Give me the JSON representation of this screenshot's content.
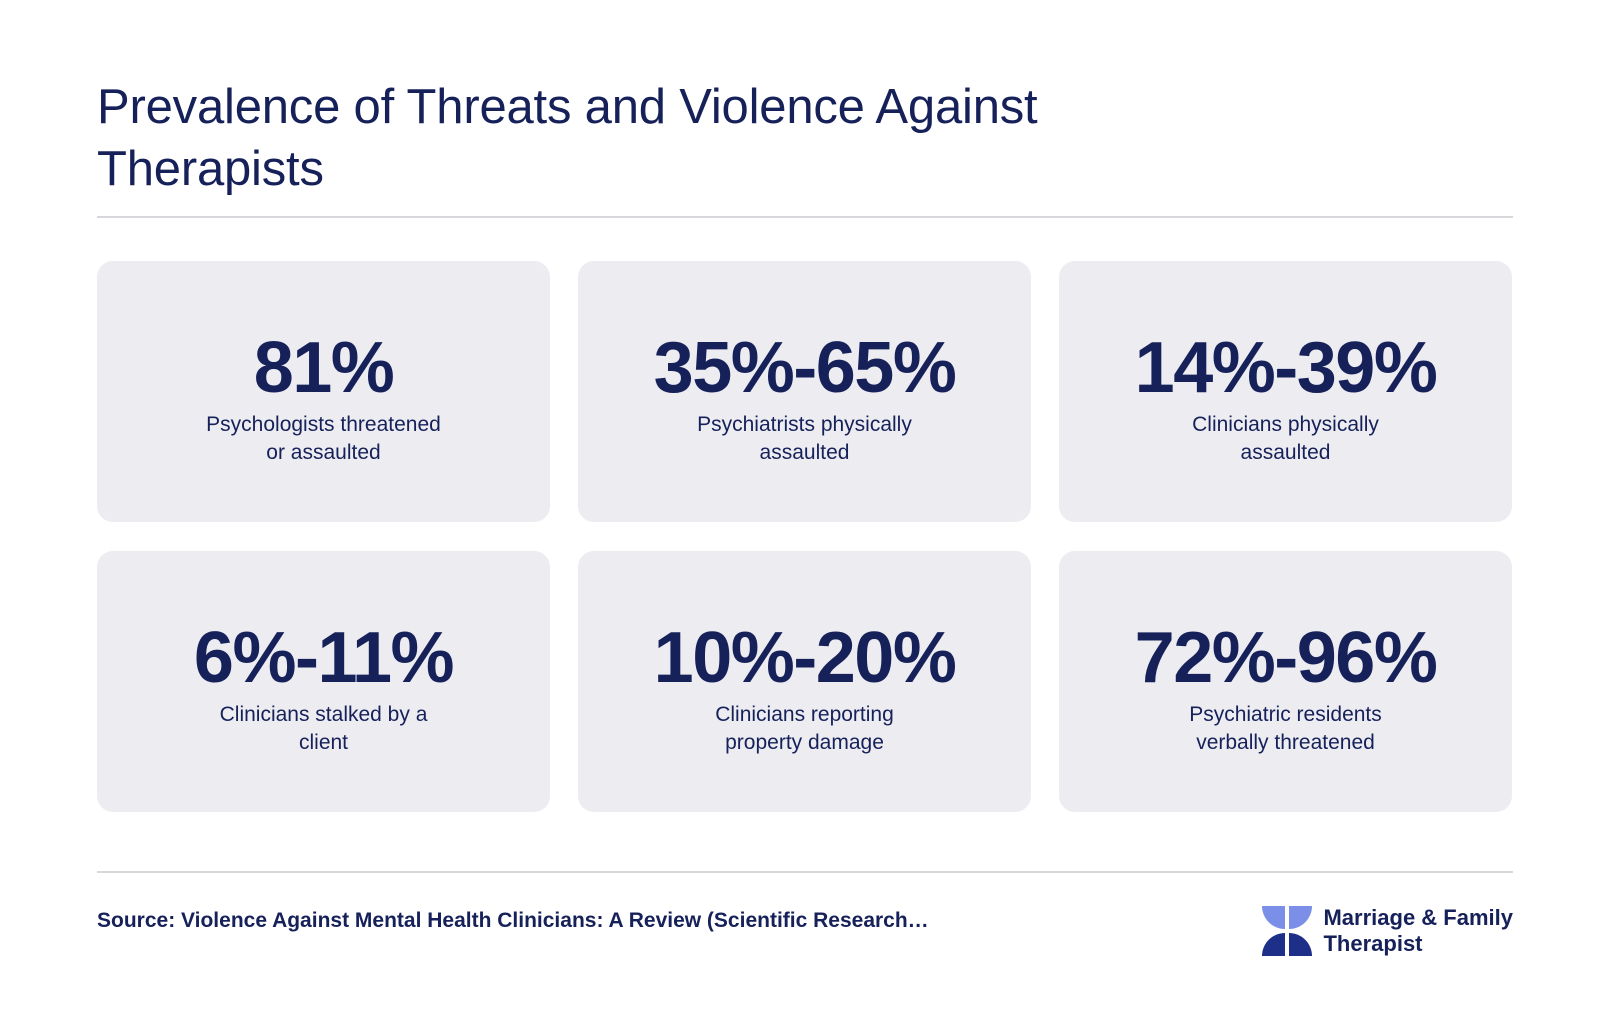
{
  "title": "Prevalence of Threats and Violence Against Therapists",
  "stats": [
    {
      "value": "81%",
      "line1": "Psychologists threatened",
      "line2": "or assaulted"
    },
    {
      "value": "35%-65%",
      "line1": "Psychiatrists physically",
      "line2": "assaulted"
    },
    {
      "value": "14%-39%",
      "line1": "Clinicians physically",
      "line2": "assaulted"
    },
    {
      "value": "6%-11%",
      "line1": "Clinicians stalked by a",
      "line2": "client"
    },
    {
      "value": "10%-20%",
      "line1": "Clinicians reporting",
      "line2": "property damage"
    },
    {
      "value": "72%-96%",
      "line1": "Psychiatric residents",
      "line2": "verbally threatened"
    }
  ],
  "footer": {
    "source": "Source: Violence Against Mental Health Clinicians: A Review (Scientific Research…",
    "brand_line1": "Marriage & Family",
    "brand_line2": "Therapist"
  },
  "colors": {
    "navy": "#16215a",
    "card_bg": "#ececf1",
    "rule": "#d7d8dc",
    "logo_light": "#7b8fe8",
    "logo_dark": "#1e2f8a"
  },
  "icons": {
    "brand_logo": "pinwheel-logo-icon"
  }
}
